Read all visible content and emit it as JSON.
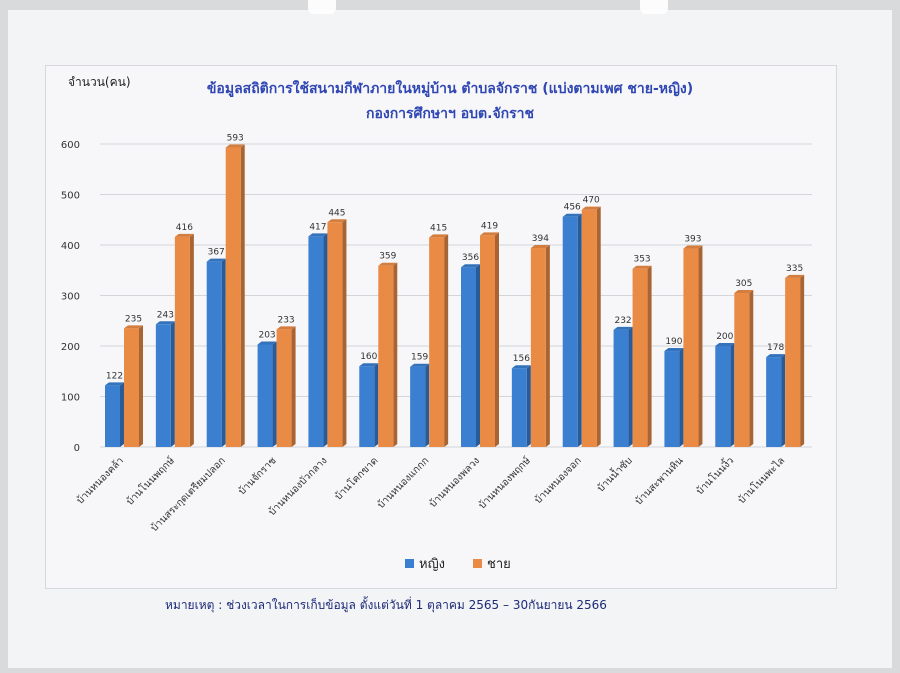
{
  "chart_data": {
    "type": "bar",
    "title": "ข้อมูลสถิติการใช้สนามกีฬาภายในหมู่บ้าน ตำบลจักราช (แบ่งตามเพศ ชาย-หญิง)",
    "subtitle": "กองการศึกษาฯ อบต.จักราช",
    "ylabel": "จำนวน(คน)",
    "ylim": [
      0,
      600
    ],
    "yticks": [
      0,
      100,
      200,
      300,
      400,
      500,
      600
    ],
    "grid": true,
    "legend_position": "bottom",
    "categories": [
      "บ้านหนองคล้า",
      "บ้านโนนพฤกษ์",
      "บ้านสระกุดเตรียมปลอก",
      "บ้านจักราช",
      "บ้านหนองบัวกลาง",
      "บ้านโคกขาด",
      "บ้านหนองแกกก",
      "บ้านหนองพลวง",
      "บ้านหนองพฤกษ์",
      "บ้านหนองจอก",
      "บ้านน้ำซับ",
      "บ้านสะพานหิน",
      "บ้านโนนงิ้ว",
      "บ้านโนนพะไล"
    ],
    "series": [
      {
        "name": "หญิง",
        "color": "#3a7fd0",
        "values": [
          122,
          243,
          367,
          203,
          417,
          160,
          159,
          356,
          156,
          456,
          232,
          190,
          200,
          178
        ]
      },
      {
        "name": "ชาย",
        "color": "#ea8b45",
        "values": [
          235,
          416,
          593,
          233,
          445,
          359,
          415,
          419,
          394,
          470,
          353,
          393,
          305,
          335
        ]
      }
    ]
  },
  "note": "หมายเหตุ : ช่วงเวลาในการเก็บข้อมูล ตั้งแต่วันที่ 1 ตุลาคม 2565 – 30กันยายน 2566"
}
